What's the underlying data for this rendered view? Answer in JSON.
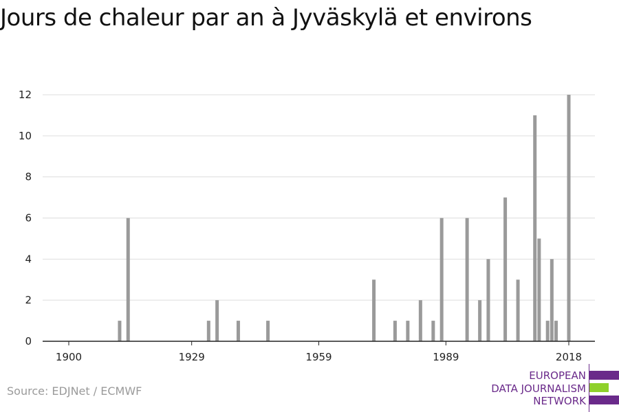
{
  "title": "Jours de chaleur par an à Jyväskylä et environs",
  "source": "Source: EDJNet / ECMWF",
  "logo": {
    "line1": "EUROPEAN",
    "line2": "DATA JOURNALISM",
    "line3": "NETWORK"
  },
  "colors": {
    "bar": "#9a9a9a",
    "grid": "#dddddd",
    "axis": "#222222",
    "logo_purple": "#6a2a8a",
    "logo_green": "#8fd12b"
  },
  "chart_data": {
    "type": "bar",
    "title": "Jours de chaleur par an à Jyväskylä et environs",
    "xlabel": "",
    "ylabel": "",
    "xlim": [
      1900,
      2018
    ],
    "ylim": [
      0,
      12
    ],
    "x_ticks": [
      1900,
      1929,
      1959,
      1989,
      2018
    ],
    "y_ticks": [
      0,
      2,
      4,
      6,
      8,
      10,
      12
    ],
    "grid": true,
    "x": [
      1912,
      1914,
      1933,
      1935,
      1940,
      1947,
      1972,
      1977,
      1980,
      1983,
      1986,
      1988,
      1994,
      1997,
      1999,
      2003,
      2006,
      2010,
      2011,
      2013,
      2014,
      2015,
      2018
    ],
    "values": [
      1,
      6,
      1,
      2,
      1,
      1,
      3,
      1,
      1,
      2,
      1,
      6,
      6,
      2,
      4,
      7,
      3,
      11,
      5,
      1,
      4,
      1,
      12
    ]
  }
}
